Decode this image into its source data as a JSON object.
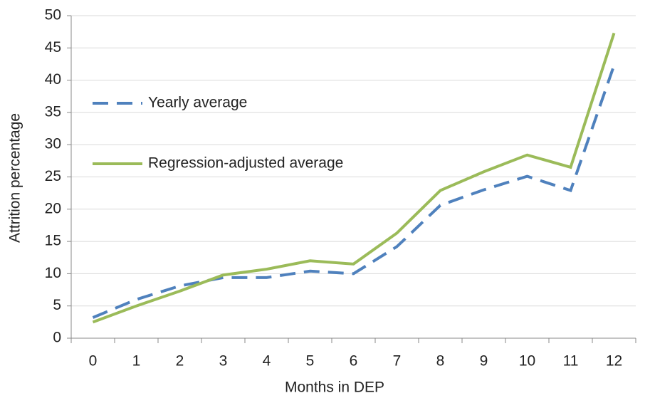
{
  "chart_data": {
    "type": "line",
    "x_label": "Months in DEP",
    "y_label": "Attrition percentage",
    "categories": [
      "0",
      "1",
      "2",
      "3",
      "4",
      "5",
      "6",
      "7",
      "8",
      "9",
      "10",
      "11",
      "12"
    ],
    "series": [
      {
        "name": "Yearly average",
        "color": "#4f81bd",
        "dashed": true,
        "values": [
          3.2,
          6.0,
          8.1,
          9.4,
          9.4,
          10.4,
          10.0,
          14.2,
          20.6,
          23.0,
          25.1,
          22.9,
          42.3
        ]
      },
      {
        "name": "Regression-adjusted average",
        "color": "#9bbb59",
        "dashed": false,
        "values": [
          2.5,
          5.0,
          7.3,
          9.8,
          10.7,
          12.0,
          11.5,
          16.3,
          22.9,
          25.8,
          28.4,
          26.5,
          47.3
        ]
      }
    ],
    "ylim": [
      0,
      50
    ],
    "yticks": [
      0,
      5,
      10,
      15,
      20,
      25,
      30,
      35,
      40,
      45,
      50
    ],
    "grid": true
  }
}
